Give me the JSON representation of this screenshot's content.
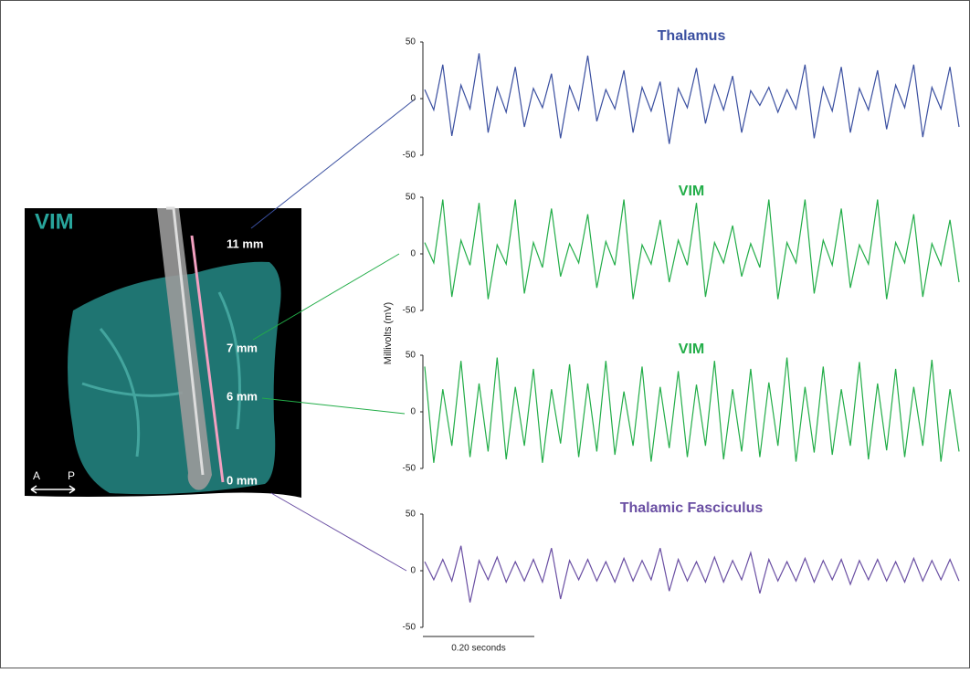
{
  "image": {
    "region_label": "VIM",
    "depth_labels": [
      "11 mm",
      "7 mm",
      "6 mm",
      "0 mm"
    ],
    "anterior": "A",
    "posterior": "P"
  },
  "y_label": "Millivolts (mV)",
  "scale_bar_label": "0.20 seconds",
  "chart_data": [
    {
      "type": "line",
      "title": "Thalamus",
      "color": "#3a4fa0",
      "ylim": [
        -50,
        50
      ],
      "yticks": [
        -50,
        0,
        50
      ],
      "values": [
        8,
        -10,
        30,
        -33,
        12,
        -9,
        40,
        -30,
        10,
        -12,
        28,
        -25,
        9,
        -8,
        22,
        -35,
        11,
        -10,
        38,
        -20,
        8,
        -9,
        25,
        -30,
        10,
        -11,
        15,
        -40,
        9,
        -8,
        27,
        -22,
        12,
        -10,
        20,
        -30,
        7,
        -6,
        10,
        -12,
        8,
        -9,
        30,
        -35,
        10,
        -11,
        28,
        -30,
        9,
        -10,
        25,
        -27,
        12,
        -8,
        30,
        -34,
        10,
        -9,
        28,
        -25
      ]
    },
    {
      "type": "line",
      "title": "VIM",
      "color": "#22ad48",
      "ylim": [
        -50,
        50
      ],
      "yticks": [
        -50,
        0,
        50
      ],
      "values": [
        10,
        -8,
        48,
        -38,
        12,
        -10,
        45,
        -40,
        8,
        -9,
        48,
        -35,
        10,
        -12,
        40,
        -20,
        9,
        -8,
        35,
        -30,
        11,
        -10,
        48,
        -40,
        8,
        -9,
        30,
        -25,
        12,
        -10,
        45,
        -38,
        10,
        -8,
        25,
        -20,
        9,
        -12,
        48,
        -40,
        10,
        -8,
        48,
        -35,
        12,
        -10,
        40,
        -30,
        8,
        -9,
        48,
        -40,
        10,
        -8,
        35,
        -38,
        9,
        -10,
        30,
        -25
      ]
    },
    {
      "type": "line",
      "title": "VIM",
      "color": "#22ad48",
      "ylim": [
        -50,
        50
      ],
      "yticks": [
        -50,
        0,
        50
      ],
      "values": [
        40,
        -45,
        20,
        -30,
        45,
        -40,
        25,
        -35,
        48,
        -42,
        22,
        -30,
        38,
        -45,
        20,
        -28,
        42,
        -40,
        25,
        -35,
        45,
        -38,
        18,
        -30,
        40,
        -44,
        22,
        -32,
        36,
        -40,
        24,
        -30,
        45,
        -42,
        20,
        -35,
        38,
        -40,
        26,
        -30,
        48,
        -44,
        22,
        -36,
        40,
        -38,
        20,
        -30,
        44,
        -42,
        25,
        -34,
        38,
        -40,
        22,
        -30,
        46,
        -44,
        20,
        -35
      ]
    },
    {
      "type": "line",
      "title": "Thalamic Fasciculus",
      "color": "#6a4fa3",
      "ylim": [
        -50,
        50
      ],
      "yticks": [
        -50,
        0,
        50
      ],
      "values": [
        8,
        -8,
        10,
        -9,
        22,
        -28,
        9,
        -8,
        12,
        -10,
        8,
        -9,
        10,
        -10,
        20,
        -25,
        9,
        -8,
        10,
        -9,
        8,
        -10,
        11,
        -9,
        9,
        -8,
        20,
        -18,
        10,
        -9,
        8,
        -10,
        12,
        -10,
        9,
        -8,
        16,
        -20,
        10,
        -9,
        8,
        -9,
        11,
        -10,
        9,
        -8,
        10,
        -12,
        9,
        -8,
        10,
        -9,
        8,
        -10,
        11,
        -9,
        9,
        -8,
        10,
        -9
      ]
    }
  ]
}
